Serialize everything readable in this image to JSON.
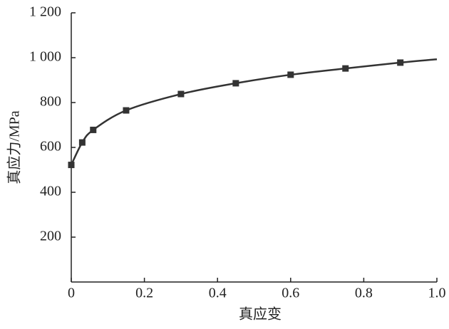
{
  "chart_data": {
    "type": "line",
    "xlabel": "真应变",
    "ylabel": "真应力/MPa",
    "xlim": [
      0,
      1
    ],
    "xticks": [
      0,
      0.2,
      0.4,
      0.6,
      0.8,
      {
        "value": 1,
        "label": "1.0"
      }
    ],
    "ylim": [
      0,
      1200
    ],
    "yticks": [
      200,
      400,
      600,
      800,
      {
        "value": 1000,
        "label": "1 000"
      },
      {
        "value": 1200,
        "label": "1 200"
      }
    ],
    "series": [
      {
        "style": "line",
        "color": "#333333",
        "x": [
          0,
          0.03,
          0.06,
          0.15,
          0.3,
          0.45,
          0.6,
          0.75,
          0.9,
          1.0
        ],
        "values": [
          522,
          622,
          678,
          765,
          838,
          886,
          924,
          952,
          978,
          993
        ]
      },
      {
        "style": "marker",
        "color": "#333333",
        "x": [
          0,
          0.03,
          0.06,
          0.15,
          0.3,
          0.45,
          0.6,
          0.75,
          0.9
        ],
        "values": [
          522,
          622,
          678,
          765,
          838,
          886,
          924,
          952,
          978
        ]
      }
    ]
  }
}
